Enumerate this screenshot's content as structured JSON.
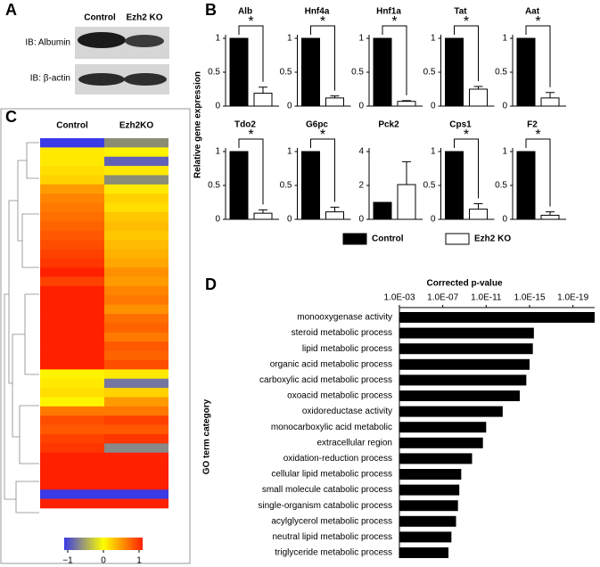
{
  "panel_labels": [
    "A",
    "B",
    "C",
    "D"
  ],
  "blot": {
    "lanes": [
      "Control",
      "Ezh2 KO"
    ],
    "rows": [
      "IB: Albumin",
      "IB: β-actin"
    ]
  },
  "gene_expression": {
    "ylabel": "Relative gene expression",
    "legend": [
      {
        "name": "Control",
        "color": "#000000"
      },
      {
        "name": "Ezh2 KO",
        "color": "#ffffff"
      }
    ]
  },
  "chart_data": [
    {
      "type": "bar",
      "title": "Alb",
      "values": [
        1,
        0.19
      ],
      "errors": [
        null,
        0.09
      ],
      "ylim": [
        0,
        1
      ],
      "yticks": [
        0,
        0.5,
        1
      ],
      "significance": "*"
    },
    {
      "type": "bar",
      "title": "Hnf4a",
      "values": [
        1,
        0.12
      ],
      "errors": [
        null,
        0.03
      ],
      "ylim": [
        0,
        1
      ],
      "yticks": [
        0,
        0.5,
        1
      ],
      "significance": "*"
    },
    {
      "type": "bar",
      "title": "Hnf1a",
      "values": [
        1,
        0.07
      ],
      "errors": [
        null,
        0.01
      ],
      "ylim": [
        0,
        1
      ],
      "yticks": [
        0,
        0.5,
        1
      ],
      "significance": "*"
    },
    {
      "type": "bar",
      "title": "Tat",
      "values": [
        1,
        0.25
      ],
      "errors": [
        null,
        0.04
      ],
      "ylim": [
        0,
        1
      ],
      "yticks": [
        0,
        0.5,
        1
      ],
      "significance": "*"
    },
    {
      "type": "bar",
      "title": "Aat",
      "values": [
        1,
        0.12
      ],
      "errors": [
        null,
        0.08
      ],
      "ylim": [
        0,
        1
      ],
      "yticks": [
        0,
        0.5,
        1
      ],
      "significance": "*"
    },
    {
      "type": "bar",
      "title": "Tdo2",
      "values": [
        1,
        0.09
      ],
      "errors": [
        null,
        0.05
      ],
      "ylim": [
        0,
        1
      ],
      "yticks": [
        0,
        0.5,
        1
      ],
      "significance": "*"
    },
    {
      "type": "bar",
      "title": "G6pc",
      "values": [
        1,
        0.11
      ],
      "errors": [
        null,
        0.07
      ],
      "ylim": [
        0,
        1
      ],
      "yticks": [
        0,
        0.5,
        1
      ],
      "significance": "*"
    },
    {
      "type": "bar",
      "title": "Pck2",
      "values": [
        1,
        2.05
      ],
      "errors": [
        null,
        1.35
      ],
      "ylim": [
        0,
        4
      ],
      "yticks": [
        0,
        2,
        4
      ]
    },
    {
      "type": "bar",
      "title": "Cps1",
      "values": [
        1,
        0.15
      ],
      "errors": [
        null,
        0.08
      ],
      "ylim": [
        0,
        1
      ],
      "yticks": [
        0,
        0.5,
        1
      ],
      "significance": "*"
    },
    {
      "type": "bar",
      "title": "F2",
      "values": [
        1,
        0.06
      ],
      "errors": [
        null,
        0.05
      ],
      "ylim": [
        0,
        1
      ],
      "yticks": [
        0,
        0.5,
        1
      ],
      "significance": "*"
    },
    {
      "type": "heatmap",
      "columns": [
        "Control",
        "Ezh2KO"
      ],
      "colors": [
        "#3a3ae6",
        "#ffff00",
        "#ff2000"
      ],
      "missing_color": "#8c8c74",
      "values": [
        [
          -1,
          null
        ],
        [
          0.1,
          0.05
        ],
        [
          0.1,
          -0.8
        ],
        [
          0.15,
          0.1
        ],
        [
          0.2,
          null
        ],
        [
          0.45,
          0.1
        ],
        [
          0.55,
          0.2
        ],
        [
          0.6,
          0.15
        ],
        [
          0.65,
          0.25
        ],
        [
          0.7,
          0.3
        ],
        [
          0.75,
          0.25
        ],
        [
          0.8,
          0.3
        ],
        [
          0.85,
          0.35
        ],
        [
          0.9,
          0.4
        ],
        [
          1,
          0.5
        ],
        [
          0.85,
          0.45
        ],
        [
          1,
          0.55
        ],
        [
          1,
          0.6
        ],
        [
          1,
          0.5
        ],
        [
          1,
          0.65
        ],
        [
          1,
          0.7
        ],
        [
          1,
          0.6
        ],
        [
          1,
          0.75
        ],
        [
          1,
          0.7
        ],
        [
          1,
          0.8
        ],
        [
          0.05,
          0.1
        ],
        [
          0.1,
          -0.7
        ],
        [
          0.15,
          0.2
        ],
        [
          0.05,
          0.45
        ],
        [
          0.6,
          0.6
        ],
        [
          0.8,
          0.85
        ],
        [
          0.75,
          0.75
        ],
        [
          0.85,
          0.9
        ],
        [
          0.9,
          -0.6
        ],
        [
          1,
          1
        ],
        [
          1,
          1
        ],
        [
          1,
          1
        ],
        [
          1,
          1
        ],
        [
          -1,
          -1
        ],
        [
          1,
          1
        ]
      ],
      "colorbar": {
        "lim": [
          -1,
          1
        ],
        "ticks": [
          {
            "value": -1,
            "label": "−1"
          },
          0,
          1
        ]
      }
    },
    {
      "type": "hbar",
      "xlabel": "Corrected p-value",
      "ylabel": "GO term category",
      "log": true,
      "color": "#000000",
      "xlim": [
        0.001,
        1e-21
      ],
      "xticks": [
        {
          "value": 0.001,
          "label": "1.0E-03"
        },
        {
          "value": 1e-07,
          "label": "1.0E-07"
        },
        {
          "value": 1e-11,
          "label": "1.0E-11"
        },
        {
          "value": 1e-15,
          "label": "1.0E-15"
        },
        {
          "value": 1e-19,
          "label": "1.0E-19"
        }
      ],
      "categories": [
        "monooxygenase activity",
        "steroid metabolic process",
        "lipid metabolic process",
        "organic acid metabolic process",
        "carboxylic acid metabolic process",
        "oxoacid metabolic process",
        "oxidoreductase activity",
        "monocarboxylic acid metabolic",
        "extracellular region",
        "oxidation-reduction process",
        "cellular lipid metabolic process",
        "small molecule catabolic process",
        "single-organism catabolic process",
        "acylglycerol metabolic process",
        "neutral lipid metabolic process",
        "triglyceride metabolic process"
      ],
      "values": [
        1e-21,
        4e-16,
        5e-16,
        1e-15,
        2e-15,
        8e-15,
        3e-13,
        1e-11,
        2e-11,
        2e-10,
        2e-09,
        3e-09,
        4e-09,
        6e-09,
        1.6e-08,
        3e-08
      ]
    }
  ]
}
